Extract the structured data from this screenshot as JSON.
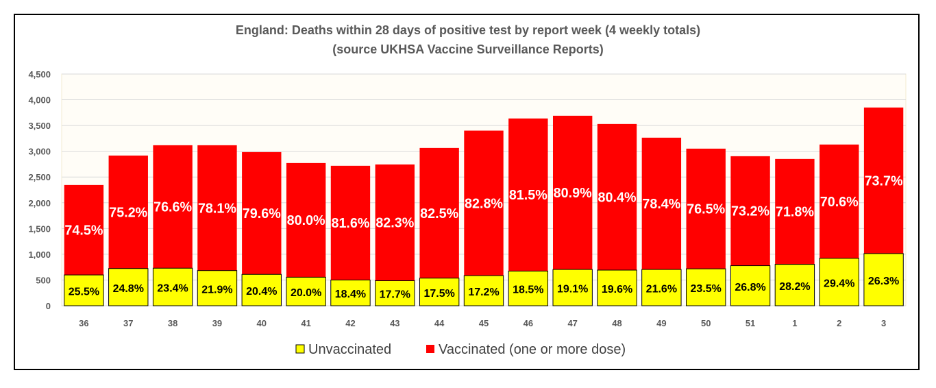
{
  "chart_data": {
    "type": "bar",
    "stacked": true,
    "title": "England: Deaths within 28 days of positive test by report week (4 weekly totals)",
    "subtitle": "(source UKHSA Vaccine Surveillance Reports)",
    "xlabel": "",
    "ylabel": "",
    "ylim": [
      0,
      4500
    ],
    "yticks": [
      0,
      500,
      1000,
      1500,
      2000,
      2500,
      3000,
      3500,
      4000,
      4500
    ],
    "ytick_labels": [
      "0",
      "500",
      "1,000",
      "1,500",
      "2,000",
      "2,500",
      "3,000",
      "3,500",
      "4,000",
      "4,500"
    ],
    "grid": true,
    "legend": "bottom",
    "categories": [
      "36",
      "37",
      "38",
      "39",
      "40",
      "41",
      "42",
      "43",
      "44",
      "45",
      "46",
      "47",
      "48",
      "49",
      "50",
      "51",
      "1",
      "2",
      "3"
    ],
    "series": [
      {
        "name": "Unvaccinated",
        "color": "#FFFF00",
        "values": [
          598,
          723,
          729,
          683,
          609,
          554,
          500,
          486,
          536,
          585,
          673,
          705,
          692,
          705,
          717,
          778,
          804,
          921,
          1013
        ],
        "labels": [
          "25.5%",
          "24.8%",
          "23.4%",
          "21.9%",
          "20.4%",
          "20.0%",
          "18.4%",
          "17.7%",
          "17.5%",
          "17.2%",
          "18.5%",
          "19.1%",
          "19.6%",
          "21.6%",
          "23.5%",
          "26.8%",
          "28.2%",
          "29.4%",
          "26.3%"
        ]
      },
      {
        "name": "Vaccinated (one or more dose)",
        "color": "#FF0000",
        "values": [
          1747,
          2194,
          2388,
          2434,
          2375,
          2217,
          2218,
          2258,
          2528,
          2816,
          2964,
          2985,
          2838,
          2559,
          2334,
          2126,
          2047,
          2210,
          2837
        ],
        "labels": [
          "74.5%",
          "75.2%",
          "76.6%",
          "78.1%",
          "79.6%",
          "80.0%",
          "81.6%",
          "82.3%",
          "82.5%",
          "82.8%",
          "81.5%",
          "80.9%",
          "80.4%",
          "78.4%",
          "76.5%",
          "73.2%",
          "71.8%",
          "70.6%",
          "73.7%"
        ]
      }
    ],
    "plot_background": "#FFFDF7"
  }
}
